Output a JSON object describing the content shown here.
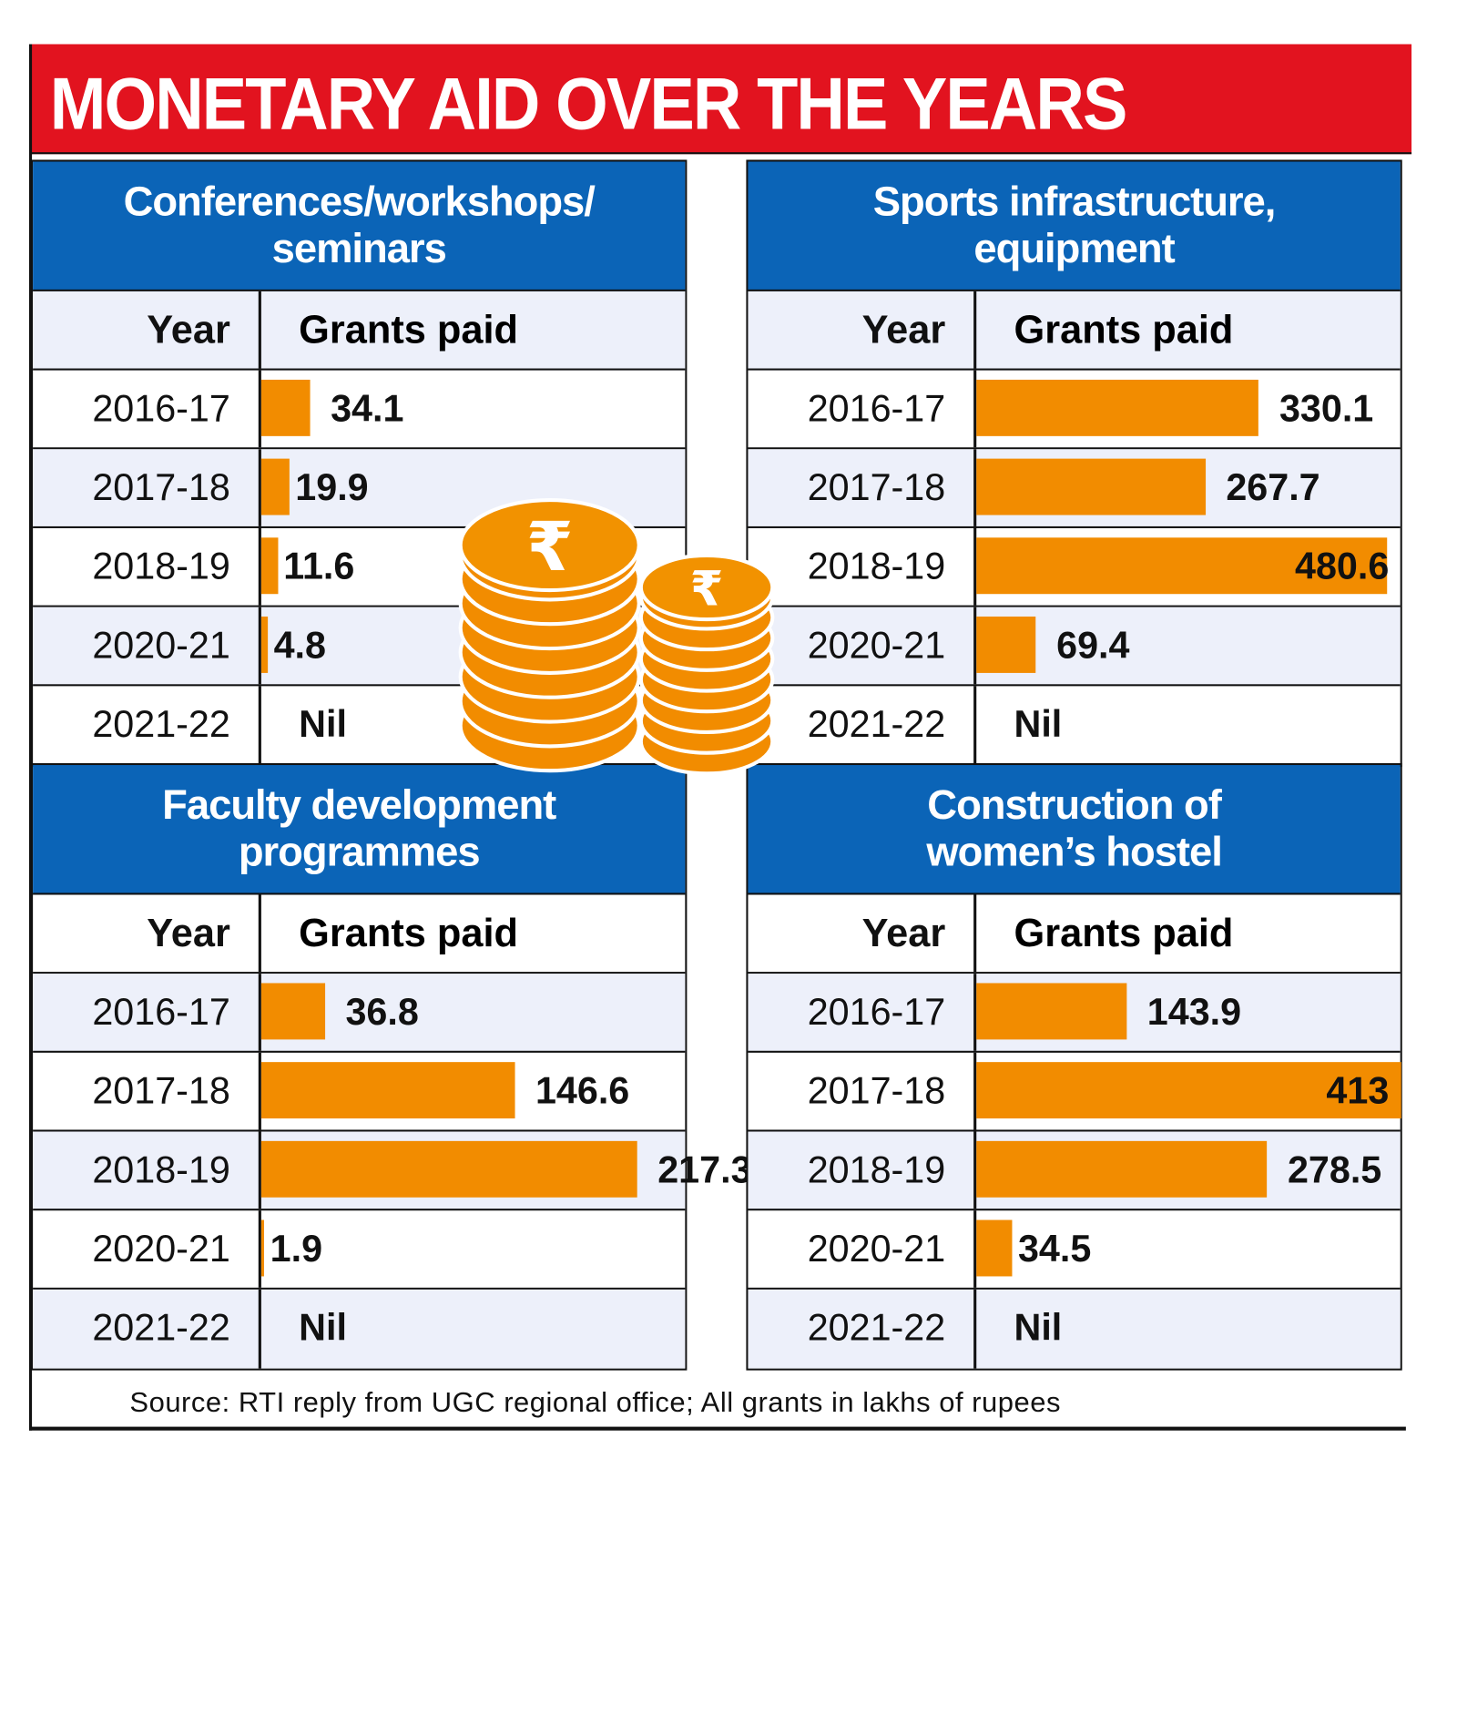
{
  "title": "MONETARY AID OVER THE YEARS",
  "source": "Source: RTI reply from UGC regional office; All grants in lakhs of rupees",
  "colors": {
    "title_bg": "#e2131f",
    "panel_header": "#0b64b7",
    "bar": "#f28c00",
    "alt_row": "#edf0fa"
  },
  "chart_data": [
    {
      "type": "bar",
      "title": "Conferences/workshops/ seminars",
      "xlabel": "Year",
      "ylabel": "Grants paid",
      "categories": [
        "2016-17",
        "2017-18",
        "2018-19",
        "2020-21",
        "2021-22"
      ],
      "values": [
        34.1,
        19.9,
        11.6,
        4.8,
        0
      ],
      "labels": [
        "34.1",
        "19.9",
        "11.6",
        "4.8",
        "Nil"
      ]
    },
    {
      "type": "bar",
      "title": "Sports infrastructure, equipment",
      "xlabel": "Year",
      "ylabel": "Grants paid",
      "categories": [
        "2016-17",
        "2017-18",
        "2018-19",
        "2020-21",
        "2021-22"
      ],
      "values": [
        330.1,
        267.7,
        480.6,
        69.4,
        0
      ],
      "labels": [
        "330.1",
        "267.7",
        "480.6",
        "69.4",
        "Nil"
      ]
    },
    {
      "type": "bar",
      "title": "Faculty development programmes",
      "xlabel": "Year",
      "ylabel": "Grants paid",
      "categories": [
        "2016-17",
        "2017-18",
        "2018-19",
        "2020-21",
        "2021-22"
      ],
      "values": [
        36.8,
        146.6,
        217.3,
        1.9,
        0
      ],
      "labels": [
        "36.8",
        "146.6",
        "217.3",
        "1.9",
        "Nil"
      ]
    },
    {
      "type": "bar",
      "title": "Construction of women’s hostel",
      "xlabel": "Year",
      "ylabel": "Grants paid",
      "categories": [
        "2016-17",
        "2017-18",
        "2018-19",
        "2020-21",
        "2021-22"
      ],
      "values": [
        143.9,
        413,
        278.5,
        34.5,
        0
      ],
      "labels": [
        "143.9",
        "413",
        "278.5",
        "34.5",
        "Nil"
      ]
    }
  ]
}
